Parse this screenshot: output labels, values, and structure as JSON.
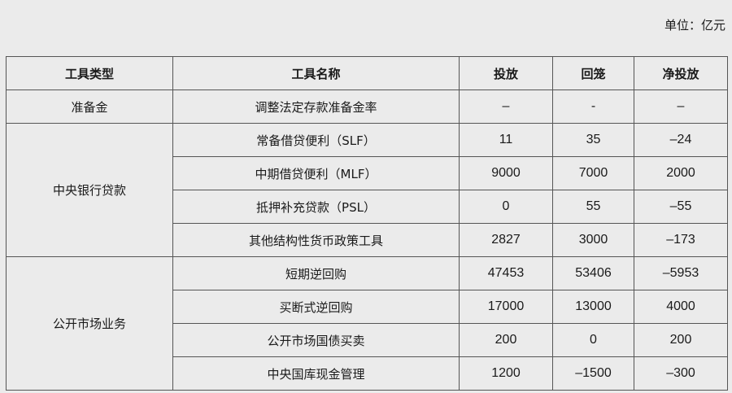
{
  "unit_label": "单位：亿元",
  "headers": [
    "工具类型",
    "工具名称",
    "投放",
    "回笼",
    "净投放"
  ],
  "groups": [
    {
      "type": "准备金",
      "rows": [
        [
          "调整法定存款准备金率",
          "–",
          "-",
          "–"
        ]
      ]
    },
    {
      "type": "中央银行贷款",
      "rows": [
        [
          "常备借贷便利（SLF）",
          "11",
          "35",
          "–24"
        ],
        [
          "中期借贷便利（MLF）",
          "9000",
          "7000",
          "2000"
        ],
        [
          "抵押补充贷款（PSL）",
          "0",
          "55",
          "–55"
        ],
        [
          "其他结构性货币政策工具",
          "2827",
          "3000",
          "–173"
        ]
      ]
    },
    {
      "type": "公开市场业务",
      "rows": [
        [
          "短期逆回购",
          "47453",
          "53406",
          "–5953"
        ],
        [
          "买断式逆回购",
          "17000",
          "13000",
          "4000"
        ],
        [
          "公开市场国债买卖",
          "200",
          "0",
          "200"
        ],
        [
          "中央国库现金管理",
          "1200",
          "–1500",
          "–300"
        ]
      ]
    }
  ]
}
